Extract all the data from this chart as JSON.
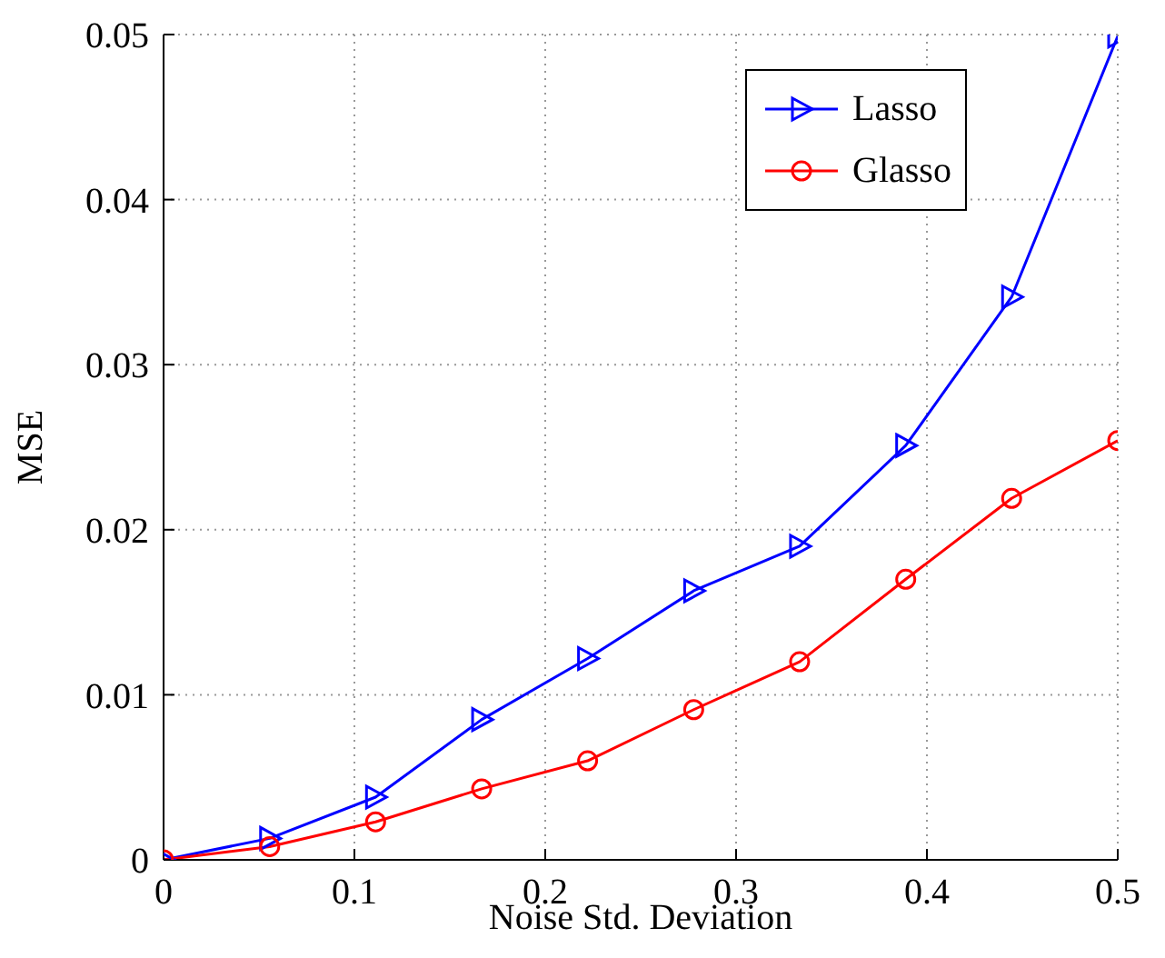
{
  "chart_data": {
    "type": "line",
    "xlabel": "Noise Std. Deviation",
    "ylabel": "MSE",
    "x": [
      0,
      0.0556,
      0.1111,
      0.1667,
      0.2222,
      0.2778,
      0.3333,
      0.3889,
      0.4444,
      0.5
    ],
    "series": [
      {
        "name": "Lasso",
        "color": "#0000ff",
        "marker": "triangle",
        "values": [
          0,
          0.0013,
          0.0038,
          0.0085,
          0.0122,
          0.0163,
          0.019,
          0.0251,
          0.0341,
          0.0499
        ]
      },
      {
        "name": "Glasso",
        "color": "#ff0000",
        "marker": "circle",
        "values": [
          0,
          0.0008,
          0.0023,
          0.0043,
          0.006,
          0.0091,
          0.012,
          0.017,
          0.0219,
          0.0254
        ]
      }
    ],
    "xlim": [
      0,
      0.5
    ],
    "xticks": [
      0,
      0.1,
      0.2,
      0.3,
      0.4,
      0.5
    ],
    "ylim": [
      0,
      0.05
    ],
    "yticks": [
      0,
      0.01,
      0.02,
      0.03,
      0.04,
      0.05
    ],
    "grid": true,
    "legend": "top right",
    "line_style": "solid"
  }
}
